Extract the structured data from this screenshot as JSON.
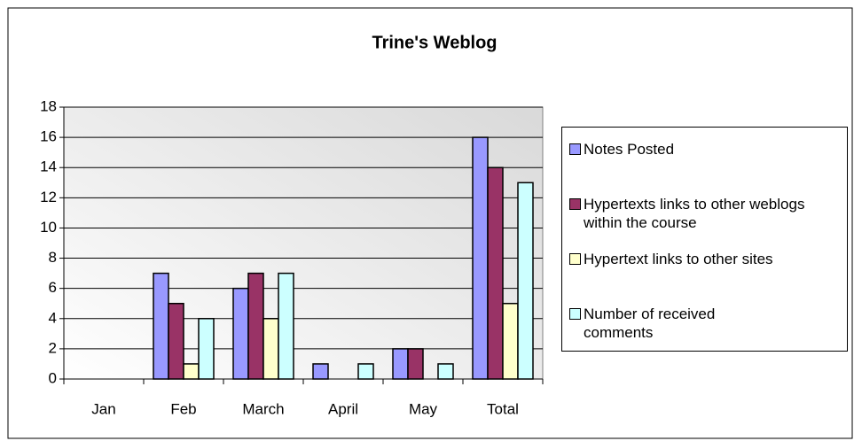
{
  "chart_data": {
    "type": "bar",
    "title": "Trine's Weblog",
    "categories": [
      "Jan",
      "Feb",
      "March",
      "April",
      "May",
      "Total"
    ],
    "series": [
      {
        "name": "Notes Posted",
        "color": "#9999ff",
        "values": [
          0,
          7,
          6,
          1,
          2,
          16
        ]
      },
      {
        "name": "Hypertexts links to other weblogs within the course",
        "color": "#993366",
        "values": [
          0,
          5,
          7,
          0,
          2,
          14
        ]
      },
      {
        "name": "Hypertext links to other sites",
        "color": "#ffffcc",
        "values": [
          0,
          1,
          4,
          0,
          0,
          5
        ]
      },
      {
        "name": "Number of received comments",
        "color": "#ccffff",
        "values": [
          0,
          4,
          7,
          1,
          1,
          13
        ]
      }
    ],
    "ylim": [
      0,
      18
    ],
    "yticks": [
      0,
      2,
      4,
      6,
      8,
      10,
      12,
      14,
      16,
      18
    ],
    "grid": true,
    "legend": "right"
  }
}
